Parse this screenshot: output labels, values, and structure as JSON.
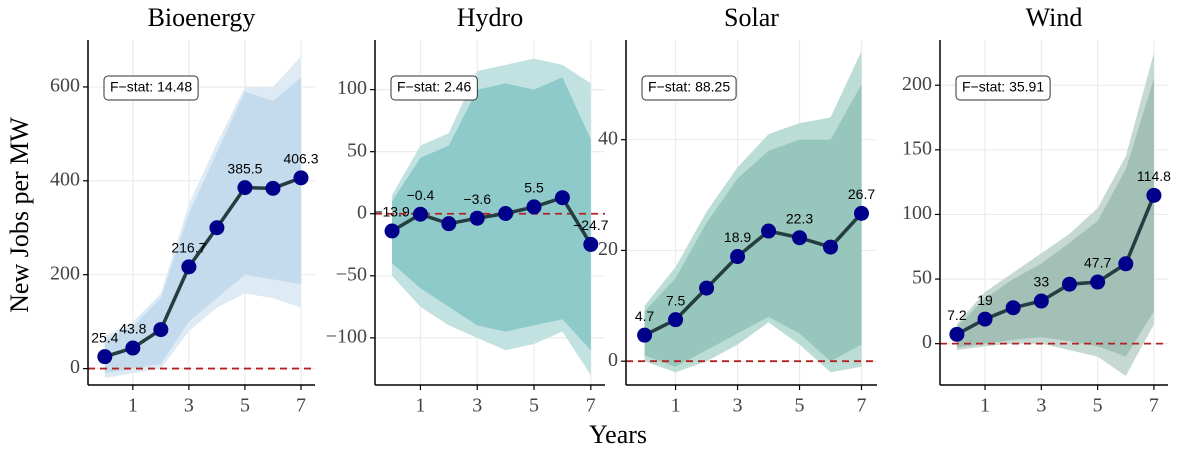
{
  "axis_labels": {
    "x": "Years",
    "y": "New Jobs per MW"
  },
  "chart_data": [
    {
      "type": "line",
      "title": "Bioenergy",
      "annotation": "F−stat: 14.48",
      "x": [
        0,
        1,
        2,
        3,
        4,
        5,
        6,
        7
      ],
      "values": [
        25.4,
        43.8,
        83,
        216.7,
        300,
        385.5,
        384,
        406.3
      ],
      "value_labels": [
        "25.4",
        "43.8",
        null,
        "216.7",
        null,
        "385.5",
        null,
        "406.3"
      ],
      "bands": [
        {
          "lower": [
            -20,
            -10,
            0,
            80,
            130,
            160,
            150,
            130
          ],
          "upper": [
            70,
            100,
            160,
            350,
            480,
            600,
            600,
            665
          ],
          "color": "#deeaf4"
        },
        {
          "lower": [
            -10,
            0,
            10,
            100,
            150,
            200,
            190,
            180
          ],
          "upper": [
            60,
            90,
            150,
            330,
            460,
            590,
            570,
            620
          ],
          "color": "#c4dbee"
        }
      ],
      "line_color": "#243d40",
      "point_color": "#00008b",
      "reference_line": 0,
      "reference_color": "#b22222",
      "xlim": [
        -0.6,
        7.5
      ],
      "xticks": [
        1,
        3,
        5,
        7
      ],
      "ylim": [
        -35,
        700
      ],
      "yticks": [
        0,
        200,
        400,
        600
      ],
      "grid": true
    },
    {
      "type": "line",
      "title": "Hydro",
      "annotation": "F−stat: 2.46",
      "x": [
        0,
        1,
        2,
        3,
        4,
        5,
        6,
        7
      ],
      "values": [
        -13.9,
        -0.4,
        -8,
        -3.6,
        0.2,
        5.5,
        12.9,
        -24.7
      ],
      "value_labels": [
        "−13.9",
        "−0.4",
        null,
        "−3.6",
        null,
        "5.5",
        null,
        "−24.7"
      ],
      "bands": [
        {
          "lower": [
            -50,
            -75,
            -90,
            -100,
            -110,
            -105,
            -95,
            -130
          ],
          "upper": [
            15,
            55,
            65,
            115,
            120,
            125,
            120,
            105
          ],
          "color": "#c2e2e2"
        },
        {
          "lower": [
            -40,
            -60,
            -75,
            -90,
            -95,
            -90,
            -85,
            -110
          ],
          "upper": [
            10,
            45,
            55,
            100,
            105,
            100,
            110,
            60
          ],
          "color": "#8fcaca"
        }
      ],
      "line_color": "#243d40",
      "point_color": "#00008b",
      "reference_line": 0,
      "reference_color": "#b22222",
      "xlim": [
        -0.6,
        7.5
      ],
      "xticks": [
        1,
        3,
        5,
        7
      ],
      "ylim": [
        -138,
        140
      ],
      "yticks": [
        {
          "value": -100,
          "label": "−100"
        },
        {
          "value": -50,
          "label": "−50"
        },
        0,
        50,
        100
      ],
      "grid": true
    },
    {
      "type": "line",
      "title": "Solar",
      "annotation": "F−stat: 88.25",
      "x": [
        0,
        1,
        2,
        3,
        4,
        5,
        6,
        7
      ],
      "values": [
        4.7,
        7.5,
        13.2,
        18.9,
        23.5,
        22.3,
        20.6,
        26.7
      ],
      "value_labels": [
        "4.7",
        "7.5",
        null,
        "18.9",
        null,
        "22.3",
        null,
        "26.7"
      ],
      "bands": [
        {
          "lower": [
            0,
            -2,
            0,
            3,
            7,
            3,
            -2,
            -1
          ],
          "upper": [
            10,
            17,
            27,
            35,
            41,
            43,
            44,
            56
          ],
          "color": "#bcdcd6"
        },
        {
          "lower": [
            1,
            -1,
            2,
            5,
            8,
            5,
            0,
            3
          ],
          "upper": [
            9,
            15,
            25,
            33,
            38,
            40,
            40,
            50
          ],
          "color": "#97c6bd"
        }
      ],
      "line_color": "#243d40",
      "point_color": "#00008b",
      "reference_line": 0,
      "reference_color": "#b22222",
      "xlim": [
        -0.6,
        7.5
      ],
      "xticks": [
        1,
        3,
        5,
        7
      ],
      "ylim": [
        -4.3,
        58
      ],
      "yticks": [
        0,
        20,
        40
      ],
      "grid": true
    },
    {
      "type": "line",
      "title": "Wind",
      "annotation": "F−stat: 35.91",
      "x": [
        0,
        1,
        2,
        3,
        4,
        5,
        6,
        7
      ],
      "values": [
        7.2,
        19,
        27.8,
        33,
        46,
        47.7,
        61.8,
        114.8
      ],
      "value_labels": [
        "7.2",
        "19",
        null,
        "33",
        null,
        "47.7",
        null,
        "114.8"
      ],
      "bands": [
        {
          "lower": [
            -5,
            -2,
            0,
            0,
            -5,
            -10,
            -25,
            15
          ],
          "upper": [
            15,
            40,
            55,
            70,
            85,
            105,
            145,
            225
          ],
          "color": "#c6d8d2"
        },
        {
          "lower": [
            -3,
            0,
            3,
            5,
            2,
            -2,
            -10,
            25
          ],
          "upper": [
            13,
            35,
            50,
            62,
            78,
            95,
            135,
            205
          ],
          "color": "#a3c0b6"
        }
      ],
      "line_color": "#243d40",
      "point_color": "#00008b",
      "reference_line": 0,
      "reference_color": "#b22222",
      "xlim": [
        -0.6,
        7.5
      ],
      "xticks": [
        1,
        3,
        5,
        7
      ],
      "ylim": [
        -32,
        235
      ],
      "yticks": [
        0,
        50,
        100,
        150,
        200
      ],
      "grid": true
    }
  ]
}
